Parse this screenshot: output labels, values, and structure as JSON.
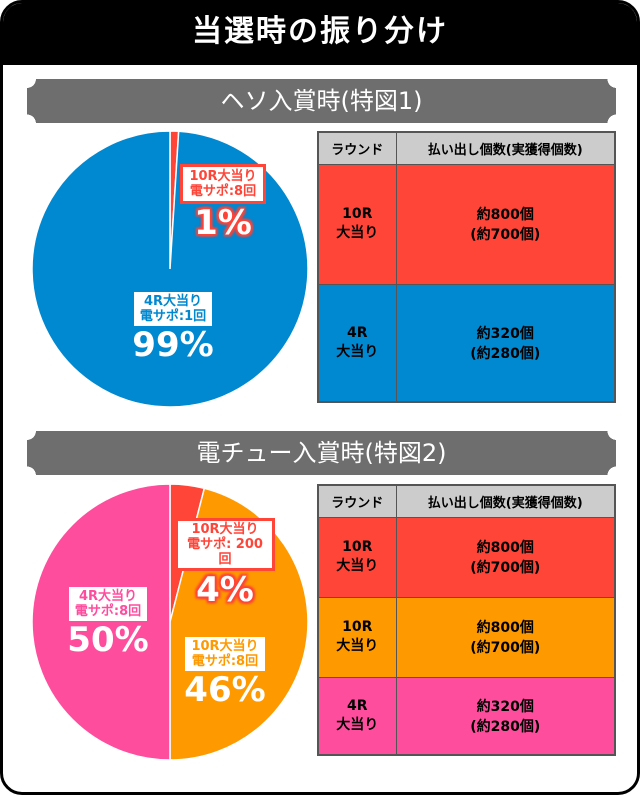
{
  "title": "当選時の振り分け",
  "colors": {
    "red": "#ff4438",
    "blue": "#0088d0",
    "orange": "#ff9900",
    "pink": "#ff4d9e"
  },
  "chart_data": [
    {
      "type": "pie",
      "title": "ヘソ入賞時(特図1)",
      "slices": [
        {
          "label": "10R大当り",
          "sub": "電サポ:8回",
          "value": 1,
          "pct": "1%",
          "color": "#ff4438"
        },
        {
          "label": "4R大当り",
          "sub": "電サポ:1回",
          "value": 99,
          "pct": "99%",
          "color": "#0088d0"
        }
      ],
      "table": {
        "headers": [
          "ラウンド",
          "払い出し個数(実獲得個数)"
        ],
        "rows": [
          {
            "round": [
              "10R",
              "大当り"
            ],
            "payout": [
              "約800個",
              "(約700個)"
            ],
            "color": "#ff4438"
          },
          {
            "round": [
              "4R",
              "大当り"
            ],
            "payout": [
              "約320個",
              "(約280個)"
            ],
            "color": "#0088d0"
          }
        ]
      }
    },
    {
      "type": "pie",
      "title": "電チュー入賞時(特図2)",
      "slices": [
        {
          "label": "10R大当り",
          "sub": "電サポ: 200回",
          "value": 4,
          "pct": "4%",
          "color": "#ff4438"
        },
        {
          "label": "10R大当り",
          "sub": "電サポ:8回",
          "value": 46,
          "pct": "46%",
          "color": "#ff9900"
        },
        {
          "label": "4R大当り",
          "sub": "電サポ:8回",
          "value": 50,
          "pct": "50%",
          "color": "#ff4d9e"
        }
      ],
      "table": {
        "headers": [
          "ラウンド",
          "払い出し個数(実獲得個数)"
        ],
        "rows": [
          {
            "round": [
              "10R",
              "大当り"
            ],
            "payout": [
              "約800個",
              "(約700個)"
            ],
            "color": "#ff4438"
          },
          {
            "round": [
              "10R",
              "大当り"
            ],
            "payout": [
              "約800個",
              "(約700個)"
            ],
            "color": "#ff9900"
          },
          {
            "round": [
              "4R",
              "大当り"
            ],
            "payout": [
              "約320個",
              "(約280個)"
            ],
            "color": "#ff4d9e"
          }
        ]
      }
    }
  ]
}
